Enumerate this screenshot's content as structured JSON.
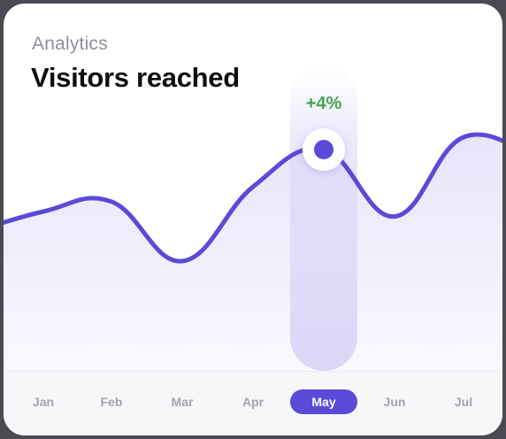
{
  "card": {
    "eyebrow": "Analytics",
    "title": "Visitors reached"
  },
  "colors": {
    "line": "#5b4ad8",
    "fill": "#e9e4fb",
    "highlight_band": "#dcd6f7",
    "positive": "#3fa652",
    "active_tab_bg": "#5b4ad8"
  },
  "chart_data": {
    "type": "area",
    "title": "Visitors reached",
    "categories": [
      "Jan",
      "Feb",
      "Mar",
      "Apr",
      "May",
      "Jun",
      "Jul"
    ],
    "series": [
      {
        "values": [
          50,
          54,
          30,
          60,
          75,
          48,
          80
        ]
      }
    ],
    "ylim": [
      0,
      100
    ],
    "grid": false,
    "highlight": {
      "category": "May",
      "change_label": "+4%"
    }
  }
}
